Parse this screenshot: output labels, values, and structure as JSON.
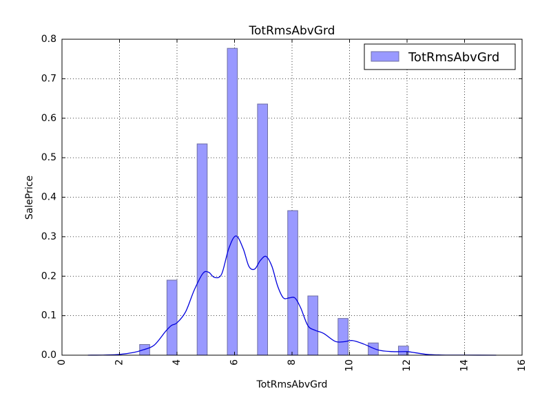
{
  "chart_data": {
    "type": "bar",
    "title": "TotRmsAbvGrd",
    "xlabel": "TotRmsAbvGrd",
    "ylabel": "SalePrice",
    "xlim": [
      0,
      16
    ],
    "ylim": [
      0,
      0.8
    ],
    "x_ticks": [
      0,
      2,
      4,
      6,
      8,
      10,
      12,
      14,
      16
    ],
    "y_ticks": [
      0.0,
      0.1,
      0.2,
      0.3,
      0.4,
      0.5,
      0.6,
      0.7,
      0.8
    ],
    "x_tick_labels": [
      "0",
      "2",
      "4",
      "6",
      "8",
      "10",
      "12",
      "14",
      "16"
    ],
    "y_tick_labels": [
      "0.0",
      "0.1",
      "0.2",
      "0.3",
      "0.4",
      "0.5",
      "0.6",
      "0.7",
      "0.8"
    ],
    "grid": true,
    "legend": {
      "position": "top-right",
      "entries": [
        "TotRmsAbvGrd"
      ]
    },
    "bars": {
      "name": "TotRmsAbvGrd",
      "bin_width": 0.35,
      "x": [
        2.7,
        3.65,
        4.7,
        5.75,
        6.8,
        7.85,
        8.55,
        9.6,
        10.65,
        11.7
      ],
      "values": [
        0.027,
        0.19,
        0.535,
        0.777,
        0.636,
        0.366,
        0.15,
        0.093,
        0.031,
        0.023
      ]
    },
    "kde": {
      "x": [
        0.9,
        1.5,
        2.0,
        2.5,
        2.8,
        3.2,
        3.6,
        3.8,
        4.0,
        4.3,
        4.6,
        4.9,
        5.1,
        5.3,
        5.55,
        5.8,
        6.05,
        6.3,
        6.5,
        6.7,
        6.9,
        7.1,
        7.3,
        7.5,
        7.7,
        7.9,
        8.1,
        8.3,
        8.55,
        8.8,
        9.1,
        9.5,
        9.8,
        10.1,
        10.5,
        11.0,
        11.5,
        12.0,
        12.3,
        12.7,
        13.2,
        14.0,
        15.1
      ],
      "y": [
        0.0,
        0.0005,
        0.002,
        0.007,
        0.013,
        0.025,
        0.06,
        0.075,
        0.082,
        0.11,
        0.165,
        0.207,
        0.21,
        0.197,
        0.205,
        0.27,
        0.302,
        0.27,
        0.225,
        0.218,
        0.24,
        0.25,
        0.225,
        0.175,
        0.145,
        0.145,
        0.145,
        0.12,
        0.075,
        0.063,
        0.055,
        0.035,
        0.034,
        0.037,
        0.028,
        0.013,
        0.009,
        0.009,
        0.006,
        0.002,
        0.0005,
        0.0002,
        0.0
      ]
    },
    "colors": {
      "bar_fill": "#9999ff",
      "bar_edge": "#6e6ea0",
      "kde": "#0000dd",
      "grid": "#000000"
    }
  }
}
